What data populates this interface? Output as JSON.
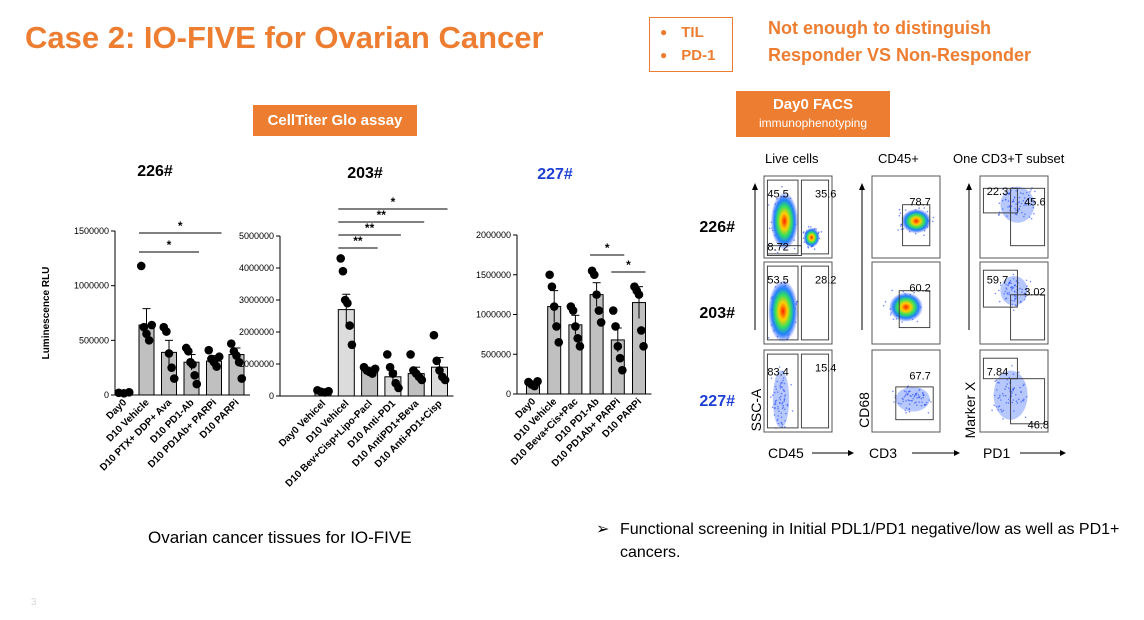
{
  "slide": {
    "title": "Case 2: IO-FIVE for Ovarian Cancer",
    "legend": [
      "TIL",
      "PD-1"
    ],
    "note_lines": [
      "Not enough to distinguish",
      "Responder VS Non-Responder"
    ],
    "assay_banner": "CellTiter Glo assay",
    "facs_banner": {
      "title": "Day0 FACS",
      "subtitle": "immunophenotyping"
    },
    "caption": "Ovarian cancer tissues for IO-FIVE",
    "bullet": {
      "arrow": "➢",
      "text": "Functional screening in Initial PDL1/PD1 negative/low as well as PD1+ cancers."
    },
    "page_number": "3",
    "colors": {
      "accent": "#ED7D31",
      "blue_label": "#1F3FD4",
      "bar_dark": "#C0C0C0",
      "bar_light": "#DCDCDC"
    }
  },
  "chart_data": [
    {
      "type": "bar",
      "title": "226#",
      "ylabel": "Luminescence RLU",
      "ylim": [
        0,
        1500000
      ],
      "yticks": [
        "0",
        "500000",
        "1000000",
        "1500000"
      ],
      "categories": [
        "Day0",
        "D10 Vehicle",
        "D10 PTX+ DDP+ Ava",
        "D10 PD1-Ab",
        "D10 PD1Ab+ PARPi",
        "D10 PARPi"
      ],
      "values": [
        20000,
        640000,
        390000,
        300000,
        310000,
        370000
      ],
      "errors": [
        3000,
        150000,
        110000,
        70000,
        50000,
        60000
      ],
      "points": [
        [
          20000,
          15000,
          25000
        ],
        [
          1180000,
          620000,
          560000,
          500000,
          640000
        ],
        [
          620000,
          580000,
          380000,
          250000,
          150000
        ],
        [
          430000,
          400000,
          300000,
          280000,
          180000,
          100000
        ],
        [
          410000,
          330000,
          300000,
          260000,
          350000
        ],
        [
          470000,
          400000,
          360000,
          300000,
          150000
        ]
      ],
      "significance": [
        {
          "from": 1,
          "to": 3,
          "label": "*"
        },
        {
          "from": 1,
          "to": 4,
          "label": "*"
        }
      ]
    },
    {
      "type": "bar",
      "title": "203#",
      "ylabel": "",
      "ylim": [
        0,
        5000000
      ],
      "yticks": [
        "0",
        "1000000",
        "2000000",
        "3000000",
        "4000000",
        "5000000"
      ],
      "categories": [
        "Day0 Vehicel",
        "D10 Vehicel",
        "D10 Bev+Cisp+Lipo-Pacl",
        "D10 Anti-PD1",
        "D10 AntiPD1+Beva",
        "D10 Anti-PD1+Cisp"
      ],
      "values": [
        150000,
        2700000,
        800000,
        600000,
        700000,
        900000
      ],
      "errors": [
        20000,
        480000,
        100000,
        180000,
        200000,
        300000
      ],
      "points": [
        [
          180000,
          130000,
          110000,
          150000
        ],
        [
          4300000,
          3900000,
          3000000,
          2900000,
          2200000,
          1600000
        ],
        [
          900000,
          800000,
          750000,
          700000,
          850000
        ],
        [
          1300000,
          900000,
          700000,
          400000,
          250000
        ],
        [
          1300000,
          800000,
          700000,
          600000,
          500000
        ],
        [
          1900000,
          1100000,
          800000,
          600000,
          500000
        ]
      ],
      "significance": [
        {
          "from": 1,
          "to": 2,
          "label": "**"
        },
        {
          "from": 1,
          "to": 3,
          "label": "**"
        },
        {
          "from": 1,
          "to": 4,
          "label": "**"
        },
        {
          "from": 1,
          "to": 5,
          "label": "*"
        }
      ]
    },
    {
      "type": "bar",
      "title": "227#",
      "ylabel": "",
      "ylim": [
        0,
        2000000
      ],
      "yticks": [
        "0",
        "500000",
        "1000000",
        "1500000",
        "2000000"
      ],
      "categories": [
        "Day0",
        "D10 Vehicle",
        "D10 Beva+Cis+Pac",
        "D10 PD1-Ab",
        "D10 PD1Ab+ PARPi",
        "D10 PARPi"
      ],
      "values": [
        130000,
        1100000,
        870000,
        1250000,
        680000,
        1150000
      ],
      "errors": [
        30000,
        200000,
        120000,
        150000,
        150000,
        200000
      ],
      "points": [
        [
          150000,
          120000,
          100000,
          160000
        ],
        [
          1500000,
          1350000,
          1100000,
          850000,
          650000
        ],
        [
          1100000,
          1050000,
          850000,
          700000,
          600000
        ],
        [
          1550000,
          1500000,
          1250000,
          1050000,
          900000
        ],
        [
          1050000,
          850000,
          600000,
          450000,
          300000
        ],
        [
          1350000,
          1300000,
          1250000,
          800000,
          600000
        ]
      ],
      "significance": [
        {
          "from": 3,
          "to": 4,
          "label": "*"
        },
        {
          "from": 4,
          "to": 5,
          "label": "*"
        }
      ]
    }
  ],
  "facs": {
    "column_headers": [
      "Live cells",
      "CD45+",
      "One CD3+T subset"
    ],
    "rows": [
      {
        "label": "226#",
        "panels": [
          [
            "45.5",
            "35.6",
            "8.72"
          ],
          [
            "78.7"
          ],
          [
            "22.3",
            "45.6"
          ]
        ]
      },
      {
        "label": "203#",
        "panels": [
          [
            "53.5",
            "28.2"
          ],
          [
            "60.2"
          ],
          [
            "59.7",
            "3.02"
          ]
        ]
      },
      {
        "label": "227#",
        "panels": [
          [
            "83.4",
            "15.4"
          ],
          [
            "67.7"
          ],
          [
            "7.84",
            "46.8"
          ]
        ]
      }
    ],
    "y_axis_labels": [
      "SSC-A",
      "CD68",
      "Marker X"
    ],
    "x_axis_labels": [
      "CD45",
      "CD3",
      "PD1"
    ]
  }
}
